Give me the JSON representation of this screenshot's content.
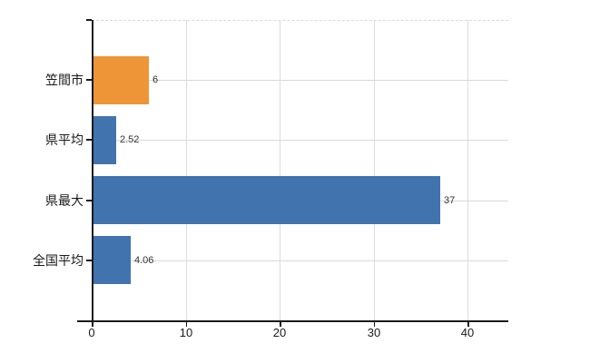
{
  "chart_data": {
    "type": "bar",
    "orientation": "horizontal",
    "title": "",
    "xlabel": "",
    "ylabel": "",
    "categories": [
      "笠間市",
      "県平均",
      "県最大",
      "全国平均"
    ],
    "values": [
      6,
      2.52,
      37,
      4.06
    ],
    "value_labels": [
      "6",
      "2.52",
      "37",
      "4.06"
    ],
    "bar_colors": [
      "#EE9537",
      "#4173AF",
      "#4173AF",
      "#4173AF"
    ],
    "x_ticks": [
      0,
      10,
      20,
      30,
      40
    ],
    "x_tick_labels": [
      "0",
      "10",
      "20",
      "30",
      "40"
    ],
    "xlim": [
      0,
      44.3
    ],
    "grid": true,
    "legend": false,
    "colors": {
      "bar_orange": "#EE9537",
      "bar_blue": "#4173AF",
      "vertical_gridline": "#dcdcdc",
      "horizontal_gridline": "#d6dad6",
      "top_border_dashed": "#d9d9d9",
      "axis": "#1a1a1a",
      "category_text": "#1a1a1a",
      "value_text": "#333333",
      "background": "#ffffff"
    }
  }
}
